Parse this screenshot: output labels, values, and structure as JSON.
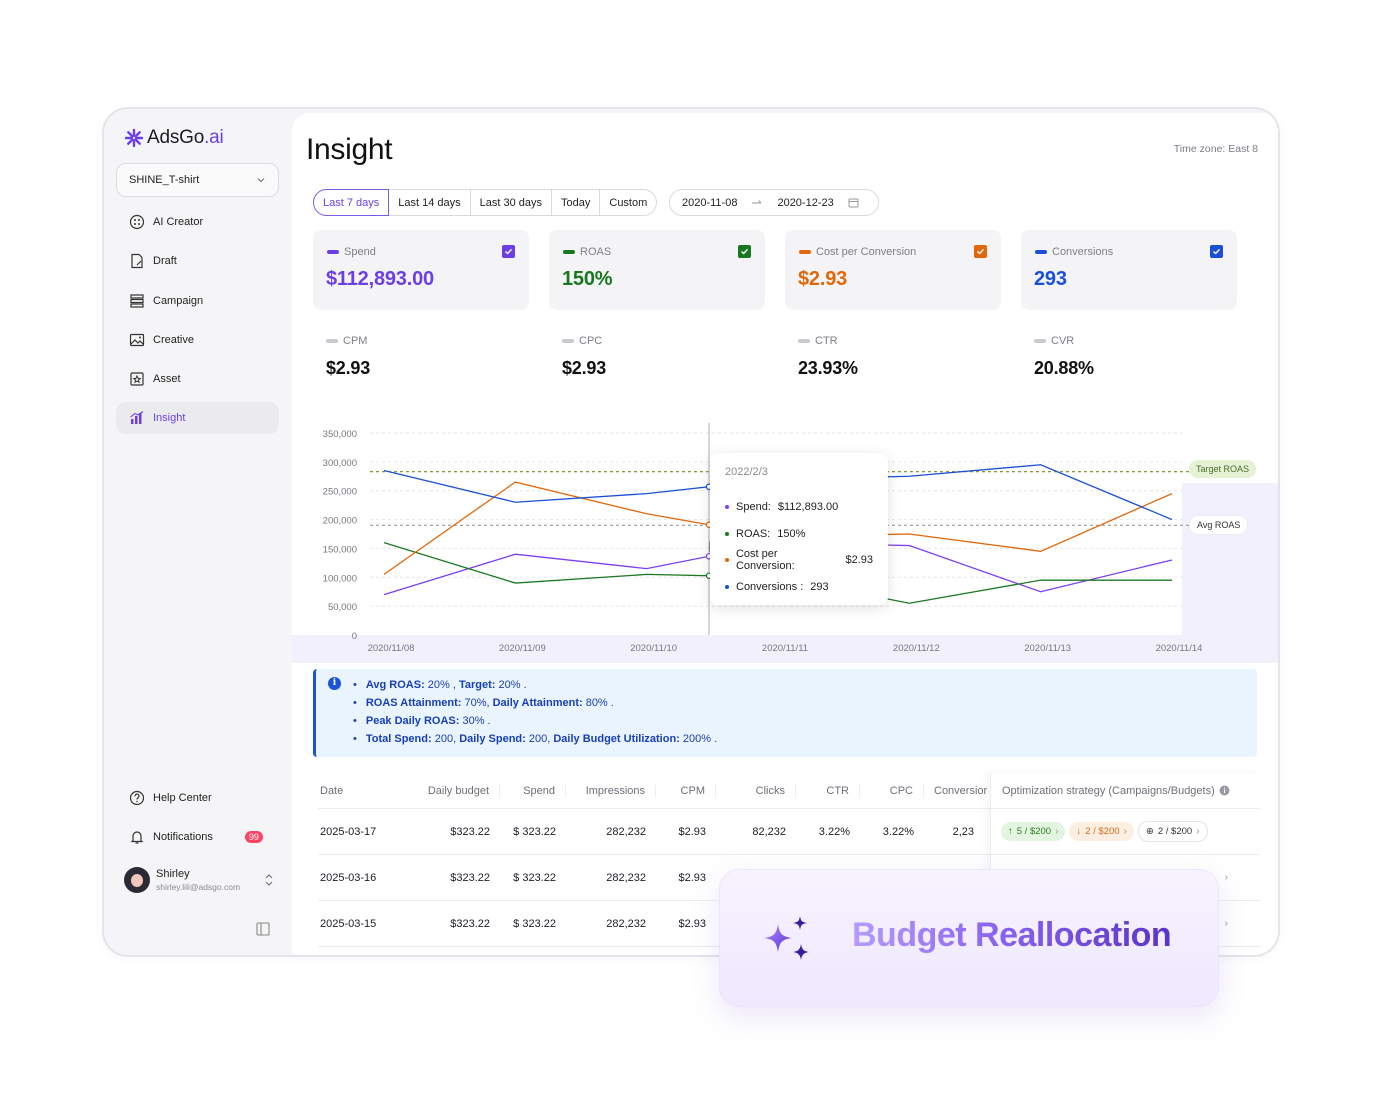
{
  "app": {
    "logo_main": "AdsGo",
    "logo_suffix": ".ai"
  },
  "account": {
    "name": "SHINE_T-shirt"
  },
  "sidebar": {
    "items": [
      {
        "label": "AI Creator",
        "icon": "ai-creator-icon"
      },
      {
        "label": "Draft",
        "icon": "draft-icon"
      },
      {
        "label": "Campaign",
        "icon": "campaign-icon"
      },
      {
        "label": "Creative",
        "icon": "creative-icon"
      },
      {
        "label": "Asset",
        "icon": "asset-icon"
      },
      {
        "label": "Insight",
        "icon": "insight-icon",
        "active": true
      }
    ],
    "help": "Help Center",
    "notifications": "Notifications",
    "notif_count": "99",
    "user": {
      "name": "Shirley",
      "email": "shirley.lili@adsgo.com"
    }
  },
  "page": {
    "title": "Insight",
    "timezone": "Time zone: East 8"
  },
  "ranges": [
    "Last 7 days",
    "Last 14 days",
    "Last 30 days",
    "Today",
    "Custom"
  ],
  "dates": {
    "start": "2020-11-08",
    "end": "2020-12-23"
  },
  "cards": [
    {
      "label": "Spend",
      "value": "$112,893.00",
      "color": "#6c3fe6"
    },
    {
      "label": "ROAS",
      "value": "150%",
      "color": "#17781f"
    },
    {
      "label": "Cost per Conversion",
      "value": "$2.93",
      "color": "#e0670a"
    },
    {
      "label": "Conversions",
      "value": "293",
      "color": "#1a4fd6"
    }
  ],
  "metrics": [
    {
      "label": "CPM",
      "value": "$2.93"
    },
    {
      "label": "CPC",
      "value": "$2.93"
    },
    {
      "label": "CTR",
      "value": "23.93%"
    },
    {
      "label": "CVR",
      "value": "20.88%"
    }
  ],
  "chart_data": {
    "type": "line",
    "categories": [
      "2020/11/08",
      "2020/11/09",
      "2020/11/10",
      "2020/11/11",
      "2020/11/12",
      "2020/11/13",
      "2020/11/14"
    ],
    "y_ticks": [
      "350,000",
      "300,000",
      "250,000",
      "200,000",
      "150,000",
      "100,000",
      "50,000",
      "0"
    ],
    "ylim": [
      0,
      350000
    ],
    "series": [
      {
        "name": "Spend",
        "color": "#7b3ff0",
        "values": [
          70000,
          140000,
          115000,
          160000,
          155000,
          75000,
          130000
        ]
      },
      {
        "name": "ROAS",
        "color": "#1a7a22",
        "values": [
          160000,
          90000,
          105000,
          100000,
          55000,
          95000,
          95000
        ]
      },
      {
        "name": "Cost per Conversion",
        "color": "#e0670a",
        "values": [
          105000,
          265000,
          210000,
          170000,
          175000,
          145000,
          245000
        ]
      },
      {
        "name": "Conversions",
        "color": "#1a4fd6",
        "values": [
          285000,
          230000,
          245000,
          270000,
          275000,
          295000,
          200000
        ]
      }
    ],
    "reference_lines": [
      {
        "name": "Target ROAS",
        "value": 283000,
        "color": "#7a8a1a"
      },
      {
        "name": "Avg ROAS",
        "value": 190000,
        "color": "#9a9aa3"
      }
    ],
    "tooltip": {
      "date": "2022/2/3",
      "rows": [
        {
          "label": "Spend:",
          "value": "$112,893.00",
          "color": "#7b3ff0"
        },
        {
          "label": "ROAS:",
          "value": "150%",
          "color": "#1a7a22"
        },
        {
          "label": "Cost per Conversion:",
          "value": "$2.93",
          "color": "#e0670a"
        },
        {
          "label": "Conversions :",
          "value": "293",
          "color": "#1a4fd6"
        }
      ]
    }
  },
  "info": [
    [
      [
        "Avg ROAS:",
        true
      ],
      [
        " 20% , ",
        false
      ],
      [
        "Target:",
        true
      ],
      [
        " 20% .",
        false
      ]
    ],
    [
      [
        "ROAS Attainment:",
        true
      ],
      [
        " 70%, ",
        false
      ],
      [
        "Daily Attainment:",
        true
      ],
      [
        " 80% .",
        false
      ]
    ],
    [
      [
        "Peak Daily ROAS:",
        true
      ],
      [
        " 30% .",
        false
      ]
    ],
    [
      [
        "Total Spend:",
        true
      ],
      [
        " 200, ",
        false
      ],
      [
        "Daily Spend:",
        true
      ],
      [
        " 200, ",
        false
      ],
      [
        "Daily Budget Utilization:",
        true
      ],
      [
        " 200% .",
        false
      ]
    ]
  ],
  "table": {
    "headers": [
      "Date",
      "Daily budget",
      "Spend",
      "Impressions",
      "CPM",
      "Clicks",
      "CTR",
      "CPC",
      "Conversior"
    ],
    "rows": [
      [
        "2025-03-17",
        "$323.22",
        "$ 323.22",
        "282,232",
        "$2.93",
        "82,232",
        "3.22%",
        "3.22%",
        "2,23"
      ],
      [
        "2025-03-16",
        "$323.22",
        "$ 323.22",
        "282,232",
        "$2.93",
        "",
        "",
        "",
        ""
      ],
      [
        "2025-03-15",
        "$323.22",
        "$ 323.22",
        "282,232",
        "$2.93",
        "",
        "",
        "",
        ""
      ]
    ],
    "opt_header": "Optimization strategy (Campaigns/Budgets)",
    "opt_pills": [
      {
        "text": "5 / $200",
        "kind": "up"
      },
      {
        "text": "2 / $200",
        "kind": "down"
      },
      {
        "text": "2 / $200",
        "kind": "add"
      }
    ]
  },
  "overlay": {
    "title": "Budget Reallocation"
  }
}
